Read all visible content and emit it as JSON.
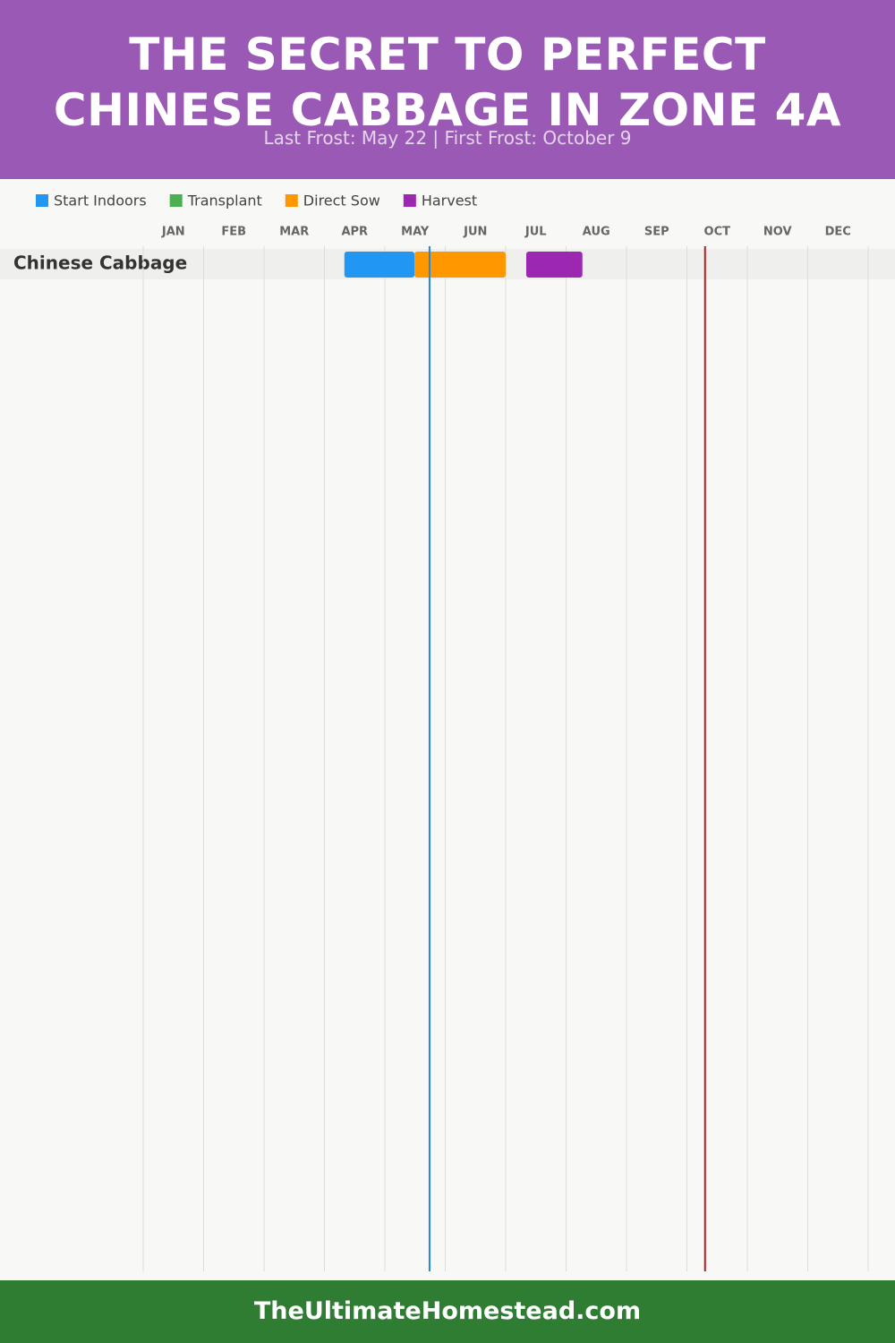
{
  "chart_data": {
    "type": "range-bar",
    "title": "The Secret to Perfect Chinese Cabbage in Zone 4A",
    "subtitle": "Last Frost: May 22 | First Frost: October 9",
    "categories": [
      "Chinese Cabbage"
    ],
    "months": [
      "JAN",
      "FEB",
      "MAR",
      "APR",
      "MAY",
      "JUN",
      "JUL",
      "AUG",
      "SEP",
      "OCT",
      "NOV",
      "DEC"
    ],
    "xlim": [
      0,
      12
    ],
    "xticks": [
      0,
      1,
      2,
      3,
      4,
      5,
      6,
      7,
      8,
      9,
      10,
      11,
      12
    ],
    "grid": true,
    "series": [
      {
        "name": "Start Indoors",
        "color": "#2196f3",
        "values": [
          [
            3.33,
            4.49
          ]
        ]
      },
      {
        "name": "Transplant",
        "color": "#4caf50",
        "values": [
          null
        ]
      },
      {
        "name": "Direct Sow",
        "color": "#ff9800",
        "values": [
          [
            4.49,
            6.0
          ]
        ]
      },
      {
        "name": "Harvest",
        "color": "#9c27b0",
        "values": [
          [
            6.34,
            7.27
          ]
        ]
      }
    ],
    "markers": [
      {
        "value": 4.74,
        "color": "#1e88e5"
      },
      {
        "value": 9.3,
        "color": "#b71c1c"
      }
    ]
  },
  "footer": "TheUltimateHomestead.com"
}
